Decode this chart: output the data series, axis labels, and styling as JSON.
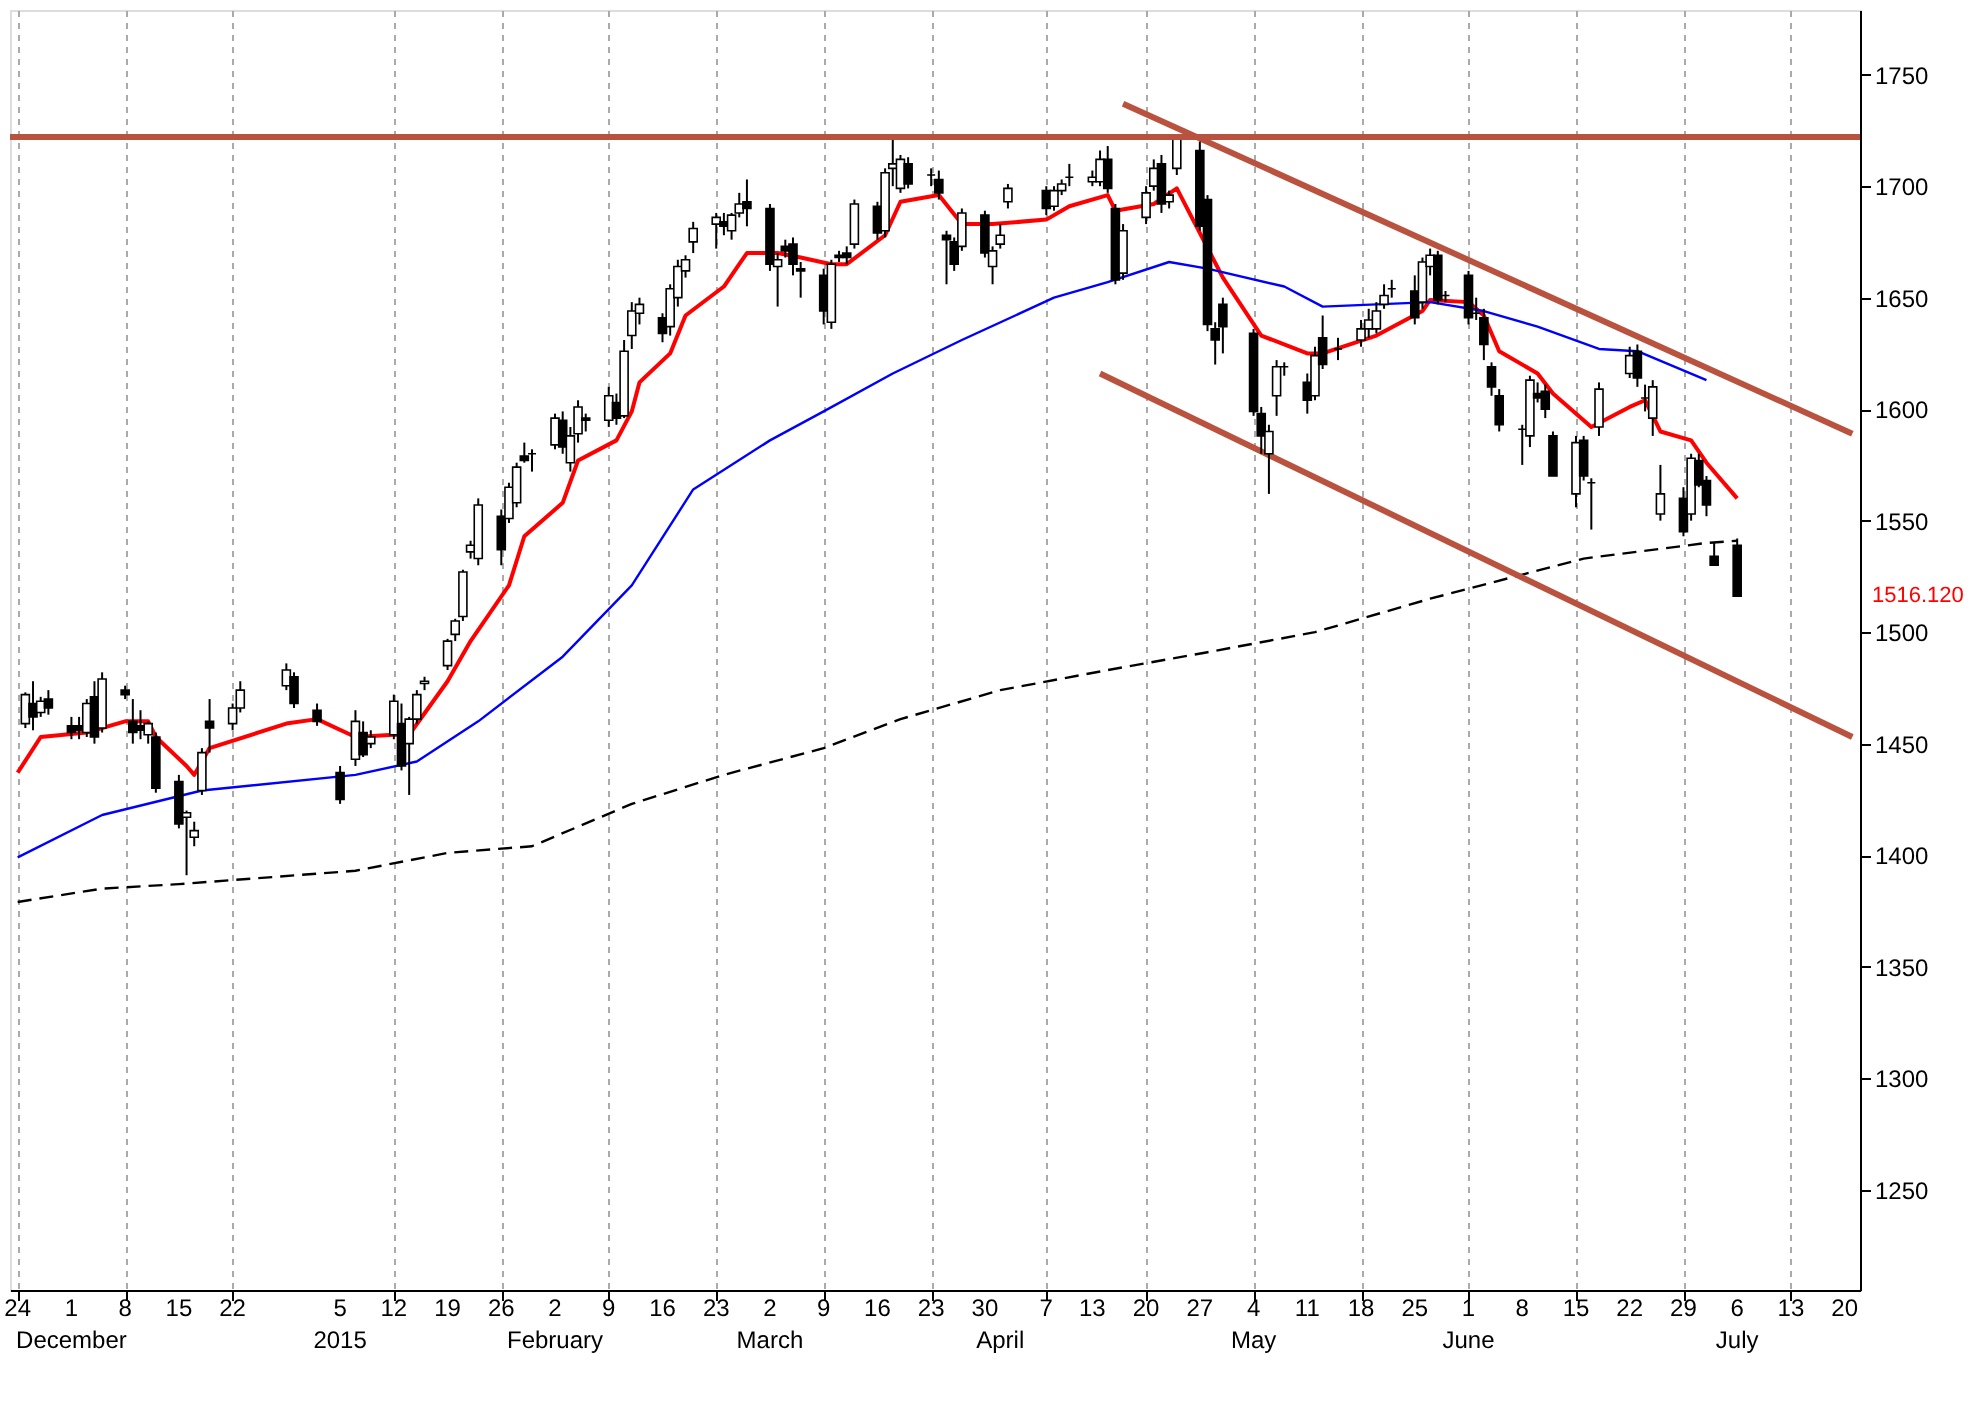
{
  "chart_data": {
    "type": "candlestick",
    "xlim": [
      "2014-11-23",
      "2015-07-22"
    ],
    "ylim": [
      1205,
      1779
    ],
    "yticks": [
      1250,
      1300,
      1350,
      1400,
      1450,
      1500,
      1550,
      1600,
      1650,
      1700,
      1750
    ],
    "xticks": [
      {
        "value": "2014-11-24",
        "label": "24"
      },
      {
        "value": "2014-12-01",
        "label": "1"
      },
      {
        "value": "2014-12-08",
        "label": "8"
      },
      {
        "value": "2014-12-15",
        "label": "15"
      },
      {
        "value": "2014-12-22",
        "label": "22"
      },
      {
        "value": "2015-01-05",
        "label": "5"
      },
      {
        "value": "2015-01-12",
        "label": "12"
      },
      {
        "value": "2015-01-19",
        "label": "19"
      },
      {
        "value": "2015-01-26",
        "label": "26"
      },
      {
        "value": "2015-02-02",
        "label": "2"
      },
      {
        "value": "2015-02-09",
        "label": "9"
      },
      {
        "value": "2015-02-16",
        "label": "16"
      },
      {
        "value": "2015-02-23",
        "label": "23"
      },
      {
        "value": "2015-03-02",
        "label": "2"
      },
      {
        "value": "2015-03-09",
        "label": "9"
      },
      {
        "value": "2015-03-16",
        "label": "16"
      },
      {
        "value": "2015-03-23",
        "label": "23"
      },
      {
        "value": "2015-03-30",
        "label": "30"
      },
      {
        "value": "2015-04-07",
        "label": "7"
      },
      {
        "value": "2015-04-13",
        "label": "13"
      },
      {
        "value": "2015-04-20",
        "label": "20"
      },
      {
        "value": "2015-04-27",
        "label": "27"
      },
      {
        "value": "2015-05-04",
        "label": "4"
      },
      {
        "value": "2015-05-11",
        "label": "11"
      },
      {
        "value": "2015-05-18",
        "label": "18"
      },
      {
        "value": "2015-05-25",
        "label": "25"
      },
      {
        "value": "2015-06-01",
        "label": "1"
      },
      {
        "value": "2015-06-08",
        "label": "8"
      },
      {
        "value": "2015-06-15",
        "label": "15"
      },
      {
        "value": "2015-06-22",
        "label": "22"
      },
      {
        "value": "2015-06-29",
        "label": "29"
      },
      {
        "value": "2015-07-06",
        "label": "6"
      },
      {
        "value": "2015-07-13",
        "label": "13"
      },
      {
        "value": "2015-07-20",
        "label": "20"
      }
    ],
    "x2lim": [
      "2014-11-23",
      "2015-07-22"
    ],
    "x2ticks": [
      {
        "value": "2014-12-01",
        "label": "December"
      },
      {
        "value": "2015-01-05",
        "label": "2015"
      },
      {
        "value": "2015-02-02",
        "label": "February"
      },
      {
        "value": "2015-03-02",
        "label": "March"
      },
      {
        "value": "2015-04-01",
        "label": "April"
      },
      {
        "value": "2015-05-04",
        "label": "May"
      },
      {
        "value": "2015-06-01",
        "label": "June"
      },
      {
        "value": "2015-07-06",
        "label": "July"
      }
    ],
    "grid": "x",
    "ref_lines": [
      {
        "axis": "y",
        "value": 1722,
        "color": "#b9533f"
      }
    ],
    "annotations": [
      "1516.120"
    ],
    "series": [
      {
        "color": "#000000",
        "x": [
          "2014-11-25",
          "2014-11-26",
          "2014-11-27",
          "2014-11-28",
          "2014-12-01",
          "2014-12-02",
          "2014-12-03",
          "2014-12-04",
          "2014-12-05",
          "2014-12-08",
          "2014-12-09",
          "2014-12-10",
          "2014-12-11",
          "2014-12-12",
          "2014-12-15",
          "2014-12-16",
          "2014-12-17",
          "2014-12-18",
          "2014-12-19",
          "2014-12-22",
          "2014-12-23",
          "2014-12-29",
          "2014-12-30",
          "2015-01-02",
          "2015-01-05",
          "2015-01-07",
          "2015-01-08",
          "2015-01-09",
          "2015-01-12",
          "2015-01-13",
          "2015-01-14",
          "2015-01-15",
          "2015-01-16",
          "2015-01-19",
          "2015-01-20",
          "2015-01-21",
          "2015-01-22",
          "2015-01-23",
          "2015-01-26",
          "2015-01-27",
          "2015-01-28",
          "2015-01-29",
          "2015-01-30",
          "2015-02-02",
          "2015-02-03",
          "2015-02-04",
          "2015-02-05",
          "2015-02-06",
          "2015-02-09",
          "2015-02-10",
          "2015-02-11",
          "2015-02-12",
          "2015-02-13",
          "2015-02-16",
          "2015-02-17",
          "2015-02-18",
          "2015-02-19",
          "2015-02-20",
          "2015-02-23",
          "2015-02-24",
          "2015-02-25",
          "2015-02-26",
          "2015-02-27",
          "2015-03-02",
          "2015-03-03",
          "2015-03-04",
          "2015-03-05",
          "2015-03-06",
          "2015-03-09",
          "2015-03-10",
          "2015-03-11",
          "2015-03-12",
          "2015-03-13",
          "2015-03-16",
          "2015-03-17",
          "2015-03-18",
          "2015-03-19",
          "2015-03-20",
          "2015-03-23",
          "2015-03-24",
          "2015-03-25",
          "2015-03-26",
          "2015-03-27",
          "2015-03-30",
          "2015-03-31",
          "2015-04-01",
          "2015-04-02",
          "2015-04-07",
          "2015-04-08",
          "2015-04-09",
          "2015-04-10",
          "2015-04-13",
          "2015-04-14",
          "2015-04-15",
          "2015-04-16",
          "2015-04-17",
          "2015-04-20",
          "2015-04-21",
          "2015-04-22",
          "2015-04-23",
          "2015-04-24",
          "2015-04-27",
          "2015-04-28",
          "2015-04-29",
          "2015-04-30",
          "2015-05-04",
          "2015-05-05",
          "2015-05-06",
          "2015-05-07",
          "2015-05-08",
          "2015-05-11",
          "2015-05-12",
          "2015-05-13",
          "2015-05-15",
          "2015-05-18",
          "2015-05-19",
          "2015-05-20",
          "2015-05-21",
          "2015-05-22",
          "2015-05-25",
          "2015-05-26",
          "2015-05-27",
          "2015-05-28",
          "2015-05-29",
          "2015-06-01",
          "2015-06-02",
          "2015-06-03",
          "2015-06-04",
          "2015-06-05",
          "2015-06-08",
          "2015-06-09",
          "2015-06-10",
          "2015-06-11",
          "2015-06-12",
          "2015-06-15",
          "2015-06-16",
          "2015-06-17",
          "2015-06-18",
          "2015-06-22",
          "2015-06-23",
          "2015-06-24",
          "2015-06-25",
          "2015-06-26",
          "2015-06-29",
          "2015-06-30",
          "2015-07-01",
          "2015-07-02",
          "2015-07-03",
          "2015-07-06"
        ],
        "ohlc": [
          [
            1459,
            1473,
            1457,
            1472
          ],
          [
            1468,
            1478,
            1456,
            1462
          ],
          [
            1464,
            1471,
            1462,
            1469
          ],
          [
            1470,
            1474,
            1463,
            1466
          ],
          [
            1458,
            1462,
            1452,
            1455
          ],
          [
            1458,
            1462,
            1452,
            1456
          ],
          [
            1455,
            1470,
            1453,
            1468
          ],
          [
            1471,
            1478,
            1450,
            1453
          ],
          [
            1457,
            1482,
            1455,
            1479
          ],
          [
            1474,
            1476,
            1470,
            1472
          ],
          [
            1460,
            1470,
            1450,
            1455
          ],
          [
            1458,
            1465,
            1452,
            1456
          ],
          [
            1454,
            1460,
            1450,
            1459
          ],
          [
            1453,
            1455,
            1428,
            1430
          ],
          [
            1433,
            1436,
            1412,
            1414
          ],
          [
            1417,
            1420,
            1391,
            1419
          ],
          [
            1408,
            1415,
            1404,
            1411
          ],
          [
            1429,
            1448,
            1427,
            1446
          ],
          [
            1460,
            1470,
            1446,
            1457
          ],
          [
            1459,
            1468,
            1456,
            1466
          ],
          [
            1466,
            1478,
            1464,
            1474
          ],
          [
            1476,
            1486,
            1474,
            1483
          ],
          [
            1480,
            1482,
            1466,
            1468
          ],
          [
            1465,
            1468,
            1458,
            1460
          ],
          [
            1437,
            1440,
            1423,
            1425
          ],
          [
            1443,
            1465,
            1440,
            1460
          ],
          [
            1455,
            1460,
            1444,
            1445
          ],
          [
            1450,
            1456,
            1448,
            1453
          ],
          [
            1454,
            1472,
            1452,
            1469
          ],
          [
            1459,
            1468,
            1438,
            1440
          ],
          [
            1450,
            1462,
            1427,
            1461
          ],
          [
            1461,
            1474,
            1459,
            1472
          ],
          [
            1477,
            1480,
            1474,
            1478
          ],
          [
            1485,
            1497,
            1483,
            1496
          ],
          [
            1499,
            1506,
            1496,
            1505
          ],
          [
            1507,
            1528,
            1505,
            1527
          ],
          [
            1536,
            1541,
            1533,
            1539
          ],
          [
            1533,
            1560,
            1530,
            1557
          ],
          [
            1552,
            1555,
            1530,
            1537
          ],
          [
            1551,
            1567,
            1549,
            1565
          ],
          [
            1558,
            1576,
            1556,
            1574
          ],
          [
            1579,
            1585,
            1576,
            1577
          ],
          [
            1580,
            1582,
            1572,
            1580
          ],
          [
            1584,
            1598,
            1582,
            1596
          ],
          [
            1595,
            1599,
            1580,
            1583
          ],
          [
            1576,
            1592,
            1572,
            1588
          ],
          [
            1589,
            1604,
            1585,
            1601
          ],
          [
            1596,
            1598,
            1590,
            1595
          ],
          [
            1595,
            1610,
            1592,
            1606
          ],
          [
            1603,
            1607,
            1593,
            1596
          ],
          [
            1597,
            1631,
            1596,
            1626
          ],
          [
            1633,
            1648,
            1627,
            1644
          ],
          [
            1643,
            1650,
            1638,
            1647
          ],
          [
            1641,
            1643,
            1630,
            1634
          ],
          [
            1637,
            1656,
            1633,
            1654
          ],
          [
            1650,
            1667,
            1646,
            1664
          ],
          [
            1662,
            1669,
            1659,
            1667
          ],
          [
            1675,
            1684,
            1670,
            1681
          ],
          [
            1683,
            1688,
            1672,
            1686
          ],
          [
            1684,
            1688,
            1678,
            1682
          ],
          [
            1680,
            1688,
            1676,
            1687
          ],
          [
            1688,
            1697,
            1686,
            1692
          ],
          [
            1693,
            1703,
            1682,
            1690
          ],
          [
            1690,
            1692,
            1662,
            1665
          ],
          [
            1664,
            1670,
            1646,
            1667
          ],
          [
            1673,
            1676,
            1668,
            1671
          ],
          [
            1674,
            1677,
            1660,
            1665
          ],
          [
            1663,
            1666,
            1650,
            1662
          ],
          [
            1660,
            1663,
            1638,
            1644
          ],
          [
            1639,
            1667,
            1636,
            1665
          ],
          [
            1669,
            1671,
            1666,
            1668
          ],
          [
            1670,
            1673,
            1665,
            1668
          ],
          [
            1674,
            1694,
            1672,
            1692
          ],
          [
            1691,
            1693,
            1676,
            1679
          ],
          [
            1680,
            1708,
            1677,
            1706
          ],
          [
            1708,
            1721,
            1700,
            1710
          ],
          [
            1699,
            1714,
            1697,
            1712
          ],
          [
            1710,
            1713,
            1699,
            1701
          ],
          [
            1705,
            1708,
            1700,
            1705
          ],
          [
            1703,
            1707,
            1694,
            1697
          ],
          [
            1678,
            1680,
            1656,
            1676
          ],
          [
            1675,
            1677,
            1662,
            1665
          ],
          [
            1673,
            1690,
            1671,
            1688
          ],
          [
            1687,
            1689,
            1668,
            1670
          ],
          [
            1664,
            1673,
            1656,
            1671
          ],
          [
            1674,
            1683,
            1672,
            1678
          ],
          [
            1693,
            1701,
            1690,
            1699
          ],
          [
            1698,
            1700,
            1687,
            1690
          ],
          [
            1691,
            1700,
            1689,
            1698
          ],
          [
            1698,
            1703,
            1696,
            1701
          ],
          [
            1704,
            1710,
            1700,
            1704
          ],
          [
            1702,
            1707,
            1700,
            1704
          ],
          [
            1702,
            1716,
            1700,
            1712
          ],
          [
            1712,
            1718,
            1697,
            1699
          ],
          [
            1690,
            1692,
            1656,
            1658
          ],
          [
            1661,
            1683,
            1658,
            1680
          ],
          [
            1686,
            1700,
            1683,
            1697
          ],
          [
            1700,
            1712,
            1698,
            1708
          ],
          [
            1710,
            1714,
            1688,
            1692
          ],
          [
            1693,
            1698,
            1690,
            1696
          ],
          [
            1708,
            1723,
            1705,
            1722
          ],
          [
            1716,
            1720,
            1680,
            1682
          ],
          [
            1694,
            1696,
            1635,
            1638
          ],
          [
            1636,
            1639,
            1620,
            1631
          ],
          [
            1647,
            1650,
            1625,
            1637
          ],
          [
            1634,
            1636,
            1597,
            1599
          ],
          [
            1598,
            1601,
            1580,
            1588
          ],
          [
            1580,
            1593,
            1562,
            1590
          ],
          [
            1606,
            1622,
            1597,
            1619
          ],
          [
            1619,
            1621,
            1615,
            1619
          ],
          [
            1612,
            1616,
            1598,
            1604
          ],
          [
            1606,
            1628,
            1604,
            1624
          ],
          [
            1632,
            1642,
            1618,
            1620
          ],
          [
            1627,
            1632,
            1622,
            1627
          ],
          [
            1631,
            1640,
            1628,
            1636
          ],
          [
            1636,
            1645,
            1632,
            1640
          ],
          [
            1636,
            1648,
            1634,
            1644
          ],
          [
            1647,
            1656,
            1645,
            1651
          ],
          [
            1654,
            1658,
            1650,
            1654
          ],
          [
            1653,
            1660,
            1638,
            1641
          ],
          [
            1648,
            1668,
            1645,
            1666
          ],
          [
            1664,
            1672,
            1660,
            1669
          ],
          [
            1669,
            1671,
            1647,
            1649
          ],
          [
            1651,
            1653,
            1648,
            1651
          ],
          [
            1660,
            1662,
            1638,
            1641
          ],
          [
            1643,
            1650,
            1640,
            1643
          ],
          [
            1641,
            1645,
            1622,
            1629
          ],
          [
            1619,
            1621,
            1606,
            1610
          ],
          [
            1606,
            1609,
            1590,
            1593
          ],
          [
            1591,
            1593,
            1575,
            1591
          ],
          [
            1588,
            1615,
            1583,
            1613
          ],
          [
            1607,
            1612,
            1603,
            1605
          ],
          [
            1608,
            1611,
            1596,
            1600
          ],
          [
            1588,
            1590,
            1570,
            1570
          ],
          [
            1562,
            1588,
            1556,
            1585
          ],
          [
            1586,
            1588,
            1568,
            1570
          ],
          [
            1567,
            1569,
            1546,
            1567
          ],
          [
            1592,
            1612,
            1588,
            1609
          ],
          [
            1616,
            1628,
            1614,
            1624
          ],
          [
            1626,
            1629,
            1610,
            1614
          ],
          [
            1605,
            1611,
            1599,
            1605
          ],
          [
            1596,
            1613,
            1588,
            1610
          ],
          [
            1553,
            1575,
            1550,
            1562
          ],
          [
            1560,
            1565,
            1543,
            1545
          ],
          [
            1553,
            1580,
            1550,
            1578
          ],
          [
            1577,
            1580,
            1565,
            1566
          ],
          [
            1568,
            1570,
            1552,
            1557
          ],
          [
            1534,
            1540,
            1530,
            1530
          ],
          [
            1539,
            1542,
            1516.12,
            1516.12
          ]
        ]
      },
      {
        "type": "line",
        "color": "#ff0000",
        "line_style": "solid",
        "x": [
          "2014-11-24",
          "2014-11-27",
          "2014-12-03",
          "2014-12-08",
          "2014-12-11",
          "2014-12-12",
          "2014-12-16",
          "2014-12-17",
          "2014-12-19",
          "2014-12-29",
          "2015-01-02",
          "2015-01-07",
          "2015-01-12",
          "2015-01-14",
          "2015-01-19",
          "2015-01-22",
          "2015-01-27",
          "2015-01-29",
          "2015-02-03",
          "2015-02-05",
          "2015-02-10",
          "2015-02-12",
          "2015-02-13",
          "2015-02-17",
          "2015-02-19",
          "2015-02-24",
          "2015-02-26",
          "2015-02-27",
          "2015-03-03",
          "2015-03-06",
          "2015-03-10",
          "2015-03-12",
          "2015-03-17",
          "2015-03-19",
          "2015-03-24",
          "2015-03-27",
          "2015-03-31",
          "2015-04-07",
          "2015-04-10",
          "2015-04-15",
          "2015-04-16",
          "2015-04-21",
          "2015-04-24",
          "2015-04-30",
          "2015-05-05",
          "2015-05-11",
          "2015-05-13",
          "2015-05-20",
          "2015-05-26",
          "2015-05-27",
          "2015-06-01",
          "2015-06-03",
          "2015-06-05",
          "2015-06-10",
          "2015-06-12",
          "2015-06-17",
          "2015-06-22",
          "2015-06-24",
          "2015-06-26",
          "2015-06-30",
          "2015-07-02",
          "2015-07-06"
        ],
        "values": [
          1437,
          1453,
          1455,
          1460,
          1460,
          1453,
          1440,
          1436,
          1448,
          1459,
          1461,
          1453,
          1454,
          1454,
          1478,
          1496,
          1521,
          1543,
          1558,
          1577,
          1586,
          1599,
          1612,
          1625,
          1642,
          1655,
          1665,
          1670,
          1670,
          1668,
          1665,
          1665,
          1678,
          1693,
          1696,
          1683,
          1683,
          1685,
          1691,
          1696,
          1689,
          1692,
          1699,
          1659,
          1633,
          1625,
          1625,
          1633,
          1644,
          1649,
          1648,
          1642,
          1626,
          1616,
          1607,
          1592,
          1601,
          1604,
          1590,
          1586,
          1576,
          1560
        ]
      },
      {
        "type": "line",
        "color": "#0000ff",
        "line_style": "solid",
        "x": [
          "2014-11-24",
          "2014-12-05",
          "2014-12-18",
          "2015-01-07",
          "2015-01-15",
          "2015-01-23",
          "2015-02-03",
          "2015-02-12",
          "2015-02-20",
          "2015-03-02",
          "2015-03-09",
          "2015-03-18",
          "2015-03-27",
          "2015-04-08",
          "2015-04-15",
          "2015-04-23",
          "2015-04-28",
          "2015-05-08",
          "2015-05-13",
          "2015-05-27",
          "2015-06-03",
          "2015-06-10",
          "2015-06-18",
          "2015-06-23",
          "2015-07-02"
        ],
        "values": [
          1399,
          1418,
          1429,
          1436,
          1442,
          1460,
          1489,
          1521,
          1564,
          1586,
          1599,
          1616,
          1631,
          1650,
          1657,
          1666,
          1663,
          1655,
          1646,
          1648,
          1644,
          1637,
          1627,
          1626,
          1613
        ]
      },
      {
        "type": "line",
        "color": "#000000",
        "line_style": "dashed",
        "x": [
          "2014-11-24",
          "2014-12-05",
          "2014-12-15",
          "2015-01-07",
          "2015-01-19",
          "2015-01-30",
          "2015-02-12",
          "2015-02-24",
          "2015-03-09",
          "2015-03-19",
          "2015-04-01",
          "2015-04-15",
          "2015-04-28",
          "2015-05-12",
          "2015-05-27",
          "2015-06-16",
          "2015-07-02",
          "2015-07-06"
        ],
        "values": [
          1379,
          1385,
          1387,
          1393,
          1401,
          1404,
          1423,
          1436,
          1448,
          1461,
          1474,
          1483,
          1491,
          1500,
          1515,
          1533,
          1540,
          1541
        ]
      },
      {
        "type": "line",
        "color": "#b9533f",
        "line_style": "solid",
        "x": [
          "2015-04-17",
          "2015-07-21"
        ],
        "values": [
          1737,
          1589
        ]
      },
      {
        "type": "line",
        "color": "#b9533f",
        "line_style": "solid",
        "x": [
          "2015-04-14",
          "2015-07-21"
        ],
        "values": [
          1616,
          1453
        ]
      }
    ]
  }
}
